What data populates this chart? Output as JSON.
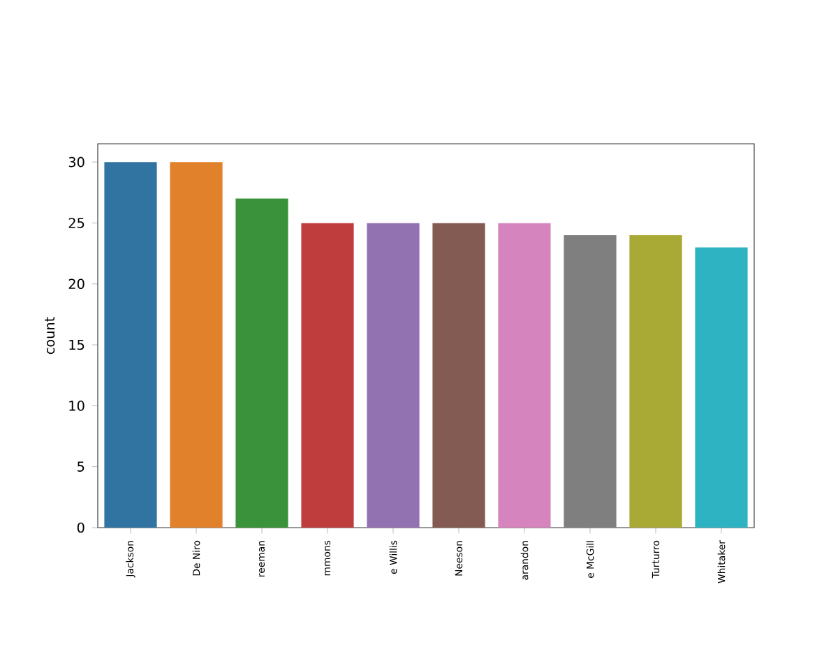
{
  "chart_data": {
    "type": "bar",
    "ylabel": "count",
    "categories": [
      "Jackson",
      "De Niro",
      "reeman",
      "mmons",
      "e Willis",
      "Neeson",
      "arandon",
      "e McGill",
      "Turturro",
      "Whitaker"
    ],
    "values": [
      30,
      30,
      27,
      25,
      25,
      25,
      25,
      24,
      24,
      23
    ],
    "colors": [
      "#3274a1",
      "#e1812c",
      "#3a923a",
      "#c03d3e",
      "#9372b2",
      "#845b53",
      "#d684bd",
      "#7f7f7f",
      "#a9aa35",
      "#2eb3c2"
    ],
    "ylim": [
      0,
      31.5
    ],
    "yticks": [
      0,
      5,
      10,
      15,
      20,
      25,
      30
    ]
  }
}
